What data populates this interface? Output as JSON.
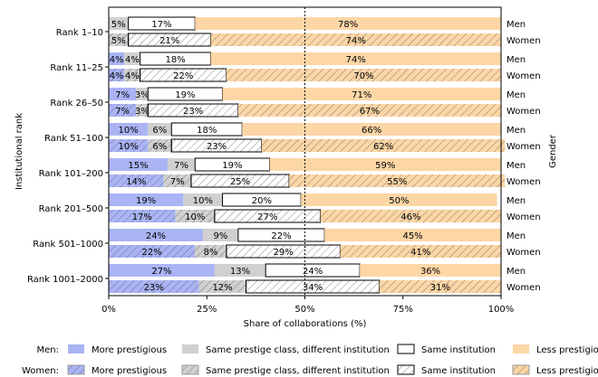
{
  "chart_data": {
    "type": "bar",
    "orientation": "horizontal-stacked",
    "xlabel": "Share of collaborations (%)",
    "ylabel": "Institutional rank",
    "right_label": "Gender",
    "xlim": [
      0,
      100
    ],
    "x_ticks": [
      "0%",
      "25%",
      "50%",
      "75%",
      "100%"
    ],
    "reference_line_x": 50,
    "categories": [
      "Rank 1–10",
      "Rank 11–25",
      "Rank 26–50",
      "Rank 51–100",
      "Rank 101–200",
      "Rank 201–500",
      "Rank 501–1000",
      "Rank 1001–2000"
    ],
    "genders": [
      "Men",
      "Women"
    ],
    "series": [
      {
        "name": "More prestigious",
        "color": "#aab4f5",
        "men": [
          0,
          4,
          7,
          10,
          15,
          19,
          24,
          27
        ],
        "women": [
          0,
          4,
          7,
          10,
          14,
          17,
          22,
          23
        ]
      },
      {
        "name": "Same prestige class, different institution",
        "color": "#d0d0d0",
        "men": [
          5,
          4,
          3,
          6,
          7,
          10,
          9,
          13
        ],
        "women": [
          5,
          4,
          3,
          6,
          7,
          10,
          8,
          12
        ]
      },
      {
        "name": "Same institution",
        "color": "#ffffff",
        "men": [
          17,
          18,
          19,
          18,
          19,
          20,
          22,
          24
        ],
        "women": [
          21,
          22,
          23,
          23,
          25,
          27,
          29,
          34
        ]
      },
      {
        "name": "Less prestigious",
        "color": "#fdd6a6",
        "men": [
          78,
          74,
          71,
          66,
          59,
          50,
          45,
          36
        ],
        "women": [
          74,
          70,
          67,
          62,
          55,
          46,
          41,
          31
        ]
      }
    ],
    "legend": {
      "placement": "bottom",
      "men_title": "Men:",
      "women_title": "Women:",
      "labels": [
        "More prestigious",
        "Same prestige class, different institution",
        "Same institution",
        "Less prestigious"
      ]
    }
  }
}
